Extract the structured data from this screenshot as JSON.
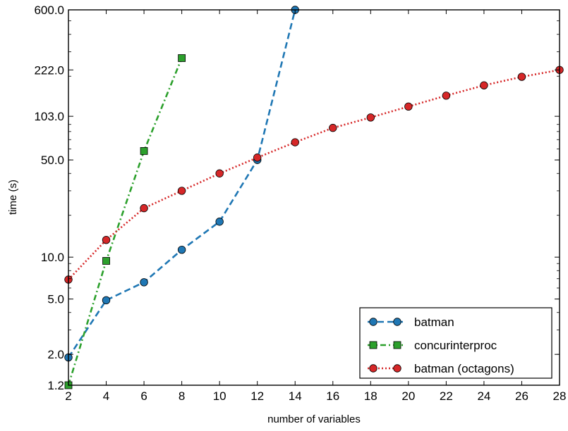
{
  "chart_data": {
    "type": "line",
    "xlabel": "number of variables",
    "ylabel": "time (s)",
    "xlim": [
      2,
      28
    ],
    "ylim": [
      1.2,
      600
    ],
    "yscale": "log",
    "x_ticks": [
      2,
      4,
      6,
      8,
      10,
      12,
      14,
      16,
      18,
      20,
      22,
      24,
      26,
      28
    ],
    "x_tick_labels": [
      "2",
      "4",
      "6",
      "8",
      "10",
      "12",
      "14",
      "16",
      "18",
      "20",
      "22",
      "24",
      "26",
      "28"
    ],
    "y_ticks": [
      1.2,
      2,
      5,
      10,
      50,
      103,
      222,
      600
    ],
    "y_tick_labels": [
      "1.2",
      "2.0",
      "5.0",
      "10.0",
      "50.0",
      "103.0",
      "222.0",
      "600.0"
    ],
    "grid": false,
    "legend_position": "bottom-right",
    "series": [
      {
        "name": "batman",
        "color": "#1f77b4",
        "line_style": "dashed",
        "marker": "circle",
        "x": [
          2,
          4,
          6,
          8,
          10,
          12,
          14
        ],
        "y": [
          1.9,
          4.9,
          6.6,
          11.3,
          18,
          50,
          600
        ]
      },
      {
        "name": "concurinterproc",
        "color": "#2ca02c",
        "line_style": "dash-dot",
        "marker": "square",
        "x": [
          2,
          4,
          6,
          8
        ],
        "y": [
          1.2,
          9.4,
          58,
          270
        ]
      },
      {
        "name": "batman (octagons)",
        "color": "#d62728",
        "line_style": "dotted",
        "marker": "circle",
        "x": [
          2,
          4,
          6,
          8,
          10,
          12,
          14,
          16,
          18,
          20,
          22,
          24,
          26,
          28
        ],
        "y": [
          6.9,
          13.3,
          22.5,
          30,
          40,
          52,
          67,
          85,
          101,
          121,
          145,
          172,
          198,
          222
        ]
      }
    ]
  }
}
